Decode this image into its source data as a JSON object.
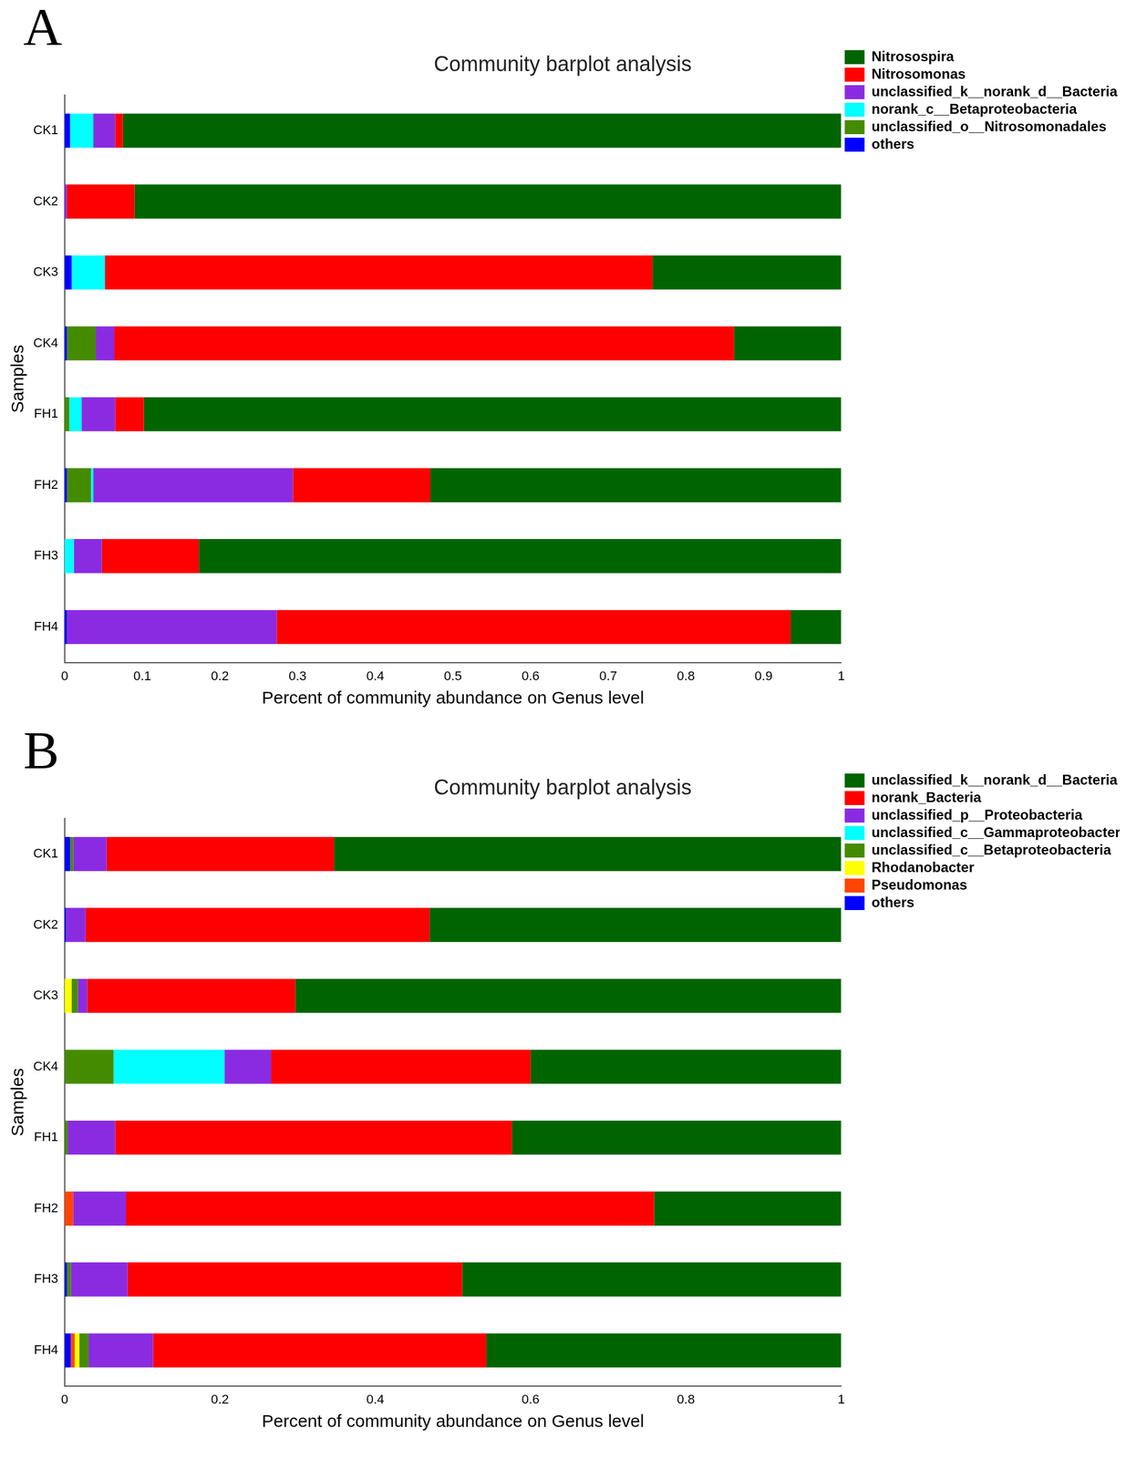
{
  "chart_data": [
    {
      "type": "bar",
      "annotations": [
        "A"
      ],
      "title": "Community barplot analysis",
      "x_label": "Percent of community abundance on Genus level",
      "y_label": "Samples",
      "orientation": "horizontal",
      "stacked": true,
      "grid": false,
      "legend": "right",
      "xlim": [
        0,
        1
      ],
      "xticks": [
        0,
        0.1,
        0.2,
        0.3,
        0.4,
        0.5,
        0.6,
        0.7,
        0.8,
        0.9,
        1
      ],
      "categories": [
        "CK1",
        "CK2",
        "CK3",
        "CK4",
        "FH1",
        "FH2",
        "FH3",
        "FH4"
      ],
      "series": [
        {
          "name": "Nitrosospira",
          "color": "#006400",
          "values": [
            0.925,
            0.91,
            0.243,
            0.138,
            0.898,
            0.529,
            0.827,
            0.065
          ]
        },
        {
          "name": "Nitrosomonas",
          "color": "#ff0000",
          "values": [
            0.01,
            0.087,
            0.705,
            0.798,
            0.037,
            0.177,
            0.125,
            0.662
          ]
        },
        {
          "name": "unclassified_k__norank_d__Bacteria",
          "color": "#8a2be2",
          "values": [
            0.028,
            0.003,
            0,
            0.024,
            0.043,
            0.257,
            0.036,
            0.27
          ]
        },
        {
          "name": "norank_c__Betaproteobacteria",
          "color": "#00ffff",
          "values": [
            0.03,
            0,
            0.043,
            0,
            0.016,
            0.003,
            0.012,
            0
          ]
        },
        {
          "name": "unclassified_o__Nitrosomonadales",
          "color": "#458b00",
          "values": [
            0,
            0,
            0,
            0.037,
            0.006,
            0.031,
            0,
            0
          ]
        },
        {
          "name": "others",
          "color": "#0000ff",
          "values": [
            0.007,
            0,
            0.009,
            0.003,
            0,
            0.003,
            0,
            0.003
          ]
        }
      ]
    },
    {
      "type": "bar",
      "annotations": [
        "B"
      ],
      "title": "Community barplot analysis",
      "x_label": "Percent of community abundance on Genus level",
      "y_label": "Samples",
      "orientation": "horizontal",
      "stacked": true,
      "grid": false,
      "legend": "right",
      "xlim": [
        0,
        1
      ],
      "xticks": [
        0,
        0.2,
        0.4,
        0.6,
        0.8,
        1
      ],
      "categories": [
        "CK1",
        "CK2",
        "CK3",
        "CK4",
        "FH1",
        "FH2",
        "FH3",
        "FH4"
      ],
      "series": [
        {
          "name": "unclassified_k__norank_d__Bacteria",
          "color": "#006400",
          "values": [
            0.653,
            0.53,
            0.703,
            0.4,
            0.424,
            0.241,
            0.488,
            0.457
          ]
        },
        {
          "name": "norank_Bacteria",
          "color": "#ff0000",
          "values": [
            0.293,
            0.443,
            0.268,
            0.334,
            0.511,
            0.68,
            0.431,
            0.429
          ]
        },
        {
          "name": "unclassified_p__Proteobacteria",
          "color": "#8a2be2",
          "values": [
            0.043,
            0.025,
            0.012,
            0.06,
            0.061,
            0.068,
            0.073,
            0.083
          ]
        },
        {
          "name": "unclassified_c__Gammaproteobacteria",
          "color": "#00ffff",
          "values": [
            0,
            0,
            0,
            0.143,
            0,
            0,
            0,
            0
          ]
        },
        {
          "name": "unclassified_c__Betaproteobacteria",
          "color": "#458b00",
          "values": [
            0.004,
            0,
            0.008,
            0.063,
            0.004,
            0,
            0.005,
            0.012
          ]
        },
        {
          "name": "Rhodanobacter",
          "color": "#ffff00",
          "values": [
            0,
            0,
            0.009,
            0,
            0,
            0,
            0,
            0.006
          ]
        },
        {
          "name": "Pseudomonas",
          "color": "#ff4500",
          "values": [
            0,
            0,
            0,
            0,
            0,
            0.011,
            0,
            0.005
          ]
        },
        {
          "name": "others",
          "color": "#0000ff",
          "values": [
            0.007,
            0.002,
            0,
            0,
            0,
            0,
            0.003,
            0.008
          ]
        }
      ]
    }
  ]
}
